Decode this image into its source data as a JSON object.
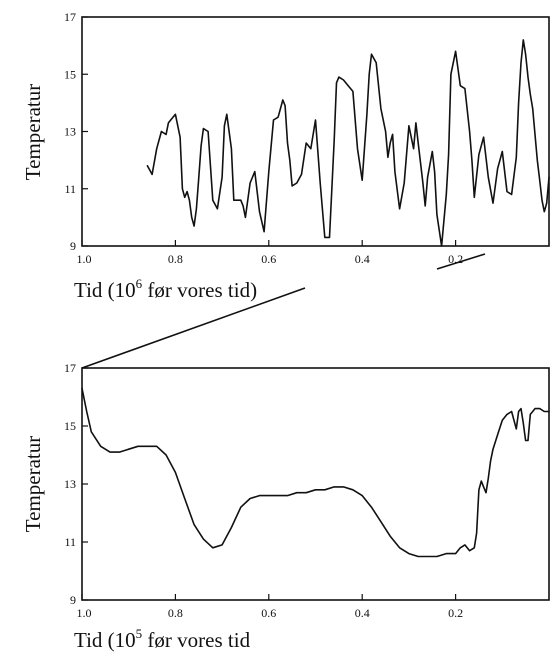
{
  "chart_data": [
    {
      "type": "line",
      "xlabel_prefix": "Tid (10",
      "xlabel_exp": "6",
      "xlabel_suffix": " før vores tid)",
      "ylabel": "Temperatur",
      "xlim": [
        1.0,
        0.0
      ],
      "ylim": [
        9,
        17
      ],
      "x_ticks": [
        "1.0",
        "0.8",
        "0.6",
        "0.4",
        "0.2"
      ],
      "x_tick_values": [
        1.0,
        0.8,
        0.6,
        0.4,
        0.2
      ],
      "y_ticks": [
        "9",
        "11",
        "13",
        "15",
        "17"
      ],
      "y_tick_values": [
        9,
        11,
        13,
        15,
        17
      ],
      "grid": false,
      "series": [
        {
          "x": [
            0.86,
            0.85,
            0.84,
            0.83,
            0.82,
            0.815,
            0.81,
            0.8,
            0.79,
            0.785,
            0.78,
            0.775,
            0.77,
            0.765,
            0.76,
            0.755,
            0.75,
            0.745,
            0.74,
            0.73,
            0.72,
            0.71,
            0.7,
            0.695,
            0.69,
            0.68,
            0.675,
            0.67,
            0.66,
            0.655,
            0.65,
            0.64,
            0.63,
            0.62,
            0.61,
            0.6,
            0.59,
            0.58,
            0.57,
            0.565,
            0.56,
            0.555,
            0.55,
            0.54,
            0.53,
            0.52,
            0.51,
            0.5,
            0.49,
            0.48,
            0.47,
            0.46,
            0.455,
            0.45,
            0.44,
            0.43,
            0.42,
            0.41,
            0.4,
            0.39,
            0.385,
            0.38,
            0.37,
            0.36,
            0.35,
            0.345,
            0.34,
            0.335,
            0.33,
            0.32,
            0.31,
            0.3,
            0.29,
            0.285,
            0.28,
            0.27,
            0.265,
            0.26,
            0.25,
            0.245,
            0.24,
            0.23,
            0.22,
            0.215,
            0.21,
            0.2,
            0.19,
            0.18,
            0.17,
            0.165,
            0.16,
            0.15,
            0.14,
            0.13,
            0.12,
            0.11,
            0.1,
            0.09,
            0.08,
            0.07,
            0.065,
            0.06,
            0.055,
            0.05,
            0.045,
            0.04,
            0.035,
            0.03,
            0.025,
            0.02,
            0.015,
            0.01,
            0.005,
            0.0
          ],
          "y": [
            11.8,
            11.5,
            12.4,
            13.0,
            12.9,
            13.3,
            13.4,
            13.6,
            12.8,
            11.0,
            10.7,
            10.9,
            10.6,
            10.0,
            9.7,
            10.3,
            11.4,
            12.5,
            13.1,
            13.0,
            10.6,
            10.3,
            11.4,
            13.2,
            13.6,
            12.4,
            10.6,
            10.6,
            10.6,
            10.4,
            10.0,
            11.2,
            11.6,
            10.2,
            9.5,
            11.6,
            13.4,
            13.5,
            14.1,
            13.9,
            12.6,
            12.0,
            11.1,
            11.2,
            11.5,
            12.6,
            12.4,
            13.4,
            11.2,
            9.3,
            9.3,
            12.7,
            14.7,
            14.9,
            14.8,
            14.6,
            14.4,
            12.4,
            11.3,
            13.6,
            15.0,
            15.7,
            15.4,
            13.8,
            13.0,
            12.1,
            12.6,
            12.9,
            11.6,
            10.3,
            11.2,
            13.2,
            12.4,
            13.3,
            12.6,
            11.2,
            10.4,
            11.4,
            12.3,
            11.6,
            10.1,
            9.0,
            10.8,
            12.2,
            15.0,
            15.8,
            14.6,
            14.5,
            13.0,
            12.0,
            10.7,
            12.2,
            12.8,
            11.4,
            10.5,
            11.7,
            12.3,
            10.9,
            10.8,
            12.1,
            14.0,
            15.4,
            16.2,
            15.7,
            14.9,
            14.3,
            13.8,
            12.9,
            12.0,
            11.3,
            10.6,
            10.2,
            10.5,
            11.4
          ]
        }
      ]
    },
    {
      "type": "line",
      "xlabel_prefix": "Tid (10",
      "xlabel_exp": "5",
      "xlabel_suffix": " før vores tid",
      "ylabel": "Temperatur",
      "xlim": [
        1.0,
        0.0
      ],
      "ylim": [
        9,
        17
      ],
      "x_ticks": [
        "1.0",
        "0.8",
        "0.6",
        "0.4",
        "0.2"
      ],
      "x_tick_values": [
        1.0,
        0.8,
        0.6,
        0.4,
        0.2
      ],
      "y_ticks": [
        "9",
        "11",
        "13",
        "15",
        "17"
      ],
      "y_tick_values": [
        9,
        11,
        13,
        15,
        17
      ],
      "grid": false,
      "series": [
        {
          "x": [
            1.0,
            0.99,
            0.98,
            0.96,
            0.94,
            0.92,
            0.9,
            0.88,
            0.86,
            0.84,
            0.82,
            0.8,
            0.78,
            0.76,
            0.74,
            0.72,
            0.7,
            0.68,
            0.66,
            0.64,
            0.62,
            0.6,
            0.58,
            0.56,
            0.54,
            0.52,
            0.5,
            0.48,
            0.46,
            0.44,
            0.42,
            0.4,
            0.38,
            0.36,
            0.34,
            0.32,
            0.3,
            0.28,
            0.26,
            0.24,
            0.22,
            0.2,
            0.19,
            0.18,
            0.17,
            0.16,
            0.155,
            0.15,
            0.145,
            0.14,
            0.135,
            0.13,
            0.125,
            0.12,
            0.11,
            0.1,
            0.09,
            0.08,
            0.07,
            0.065,
            0.06,
            0.055,
            0.05,
            0.045,
            0.04,
            0.035,
            0.03,
            0.02,
            0.01,
            0.0
          ],
          "y": [
            16.3,
            15.5,
            14.8,
            14.3,
            14.1,
            14.1,
            14.2,
            14.3,
            14.3,
            14.3,
            14.0,
            13.4,
            12.5,
            11.6,
            11.1,
            10.8,
            10.9,
            11.5,
            12.2,
            12.5,
            12.6,
            12.6,
            12.6,
            12.6,
            12.7,
            12.7,
            12.8,
            12.8,
            12.9,
            12.9,
            12.8,
            12.6,
            12.2,
            11.7,
            11.2,
            10.8,
            10.6,
            10.5,
            10.5,
            10.5,
            10.6,
            10.6,
            10.8,
            10.9,
            10.7,
            10.8,
            11.3,
            12.8,
            13.1,
            12.9,
            12.7,
            13.2,
            13.8,
            14.2,
            14.7,
            15.2,
            15.4,
            15.5,
            14.9,
            15.5,
            15.6,
            15.1,
            14.5,
            14.5,
            15.4,
            15.5,
            15.6,
            15.6,
            15.5,
            15.5
          ]
        }
      ]
    }
  ]
}
